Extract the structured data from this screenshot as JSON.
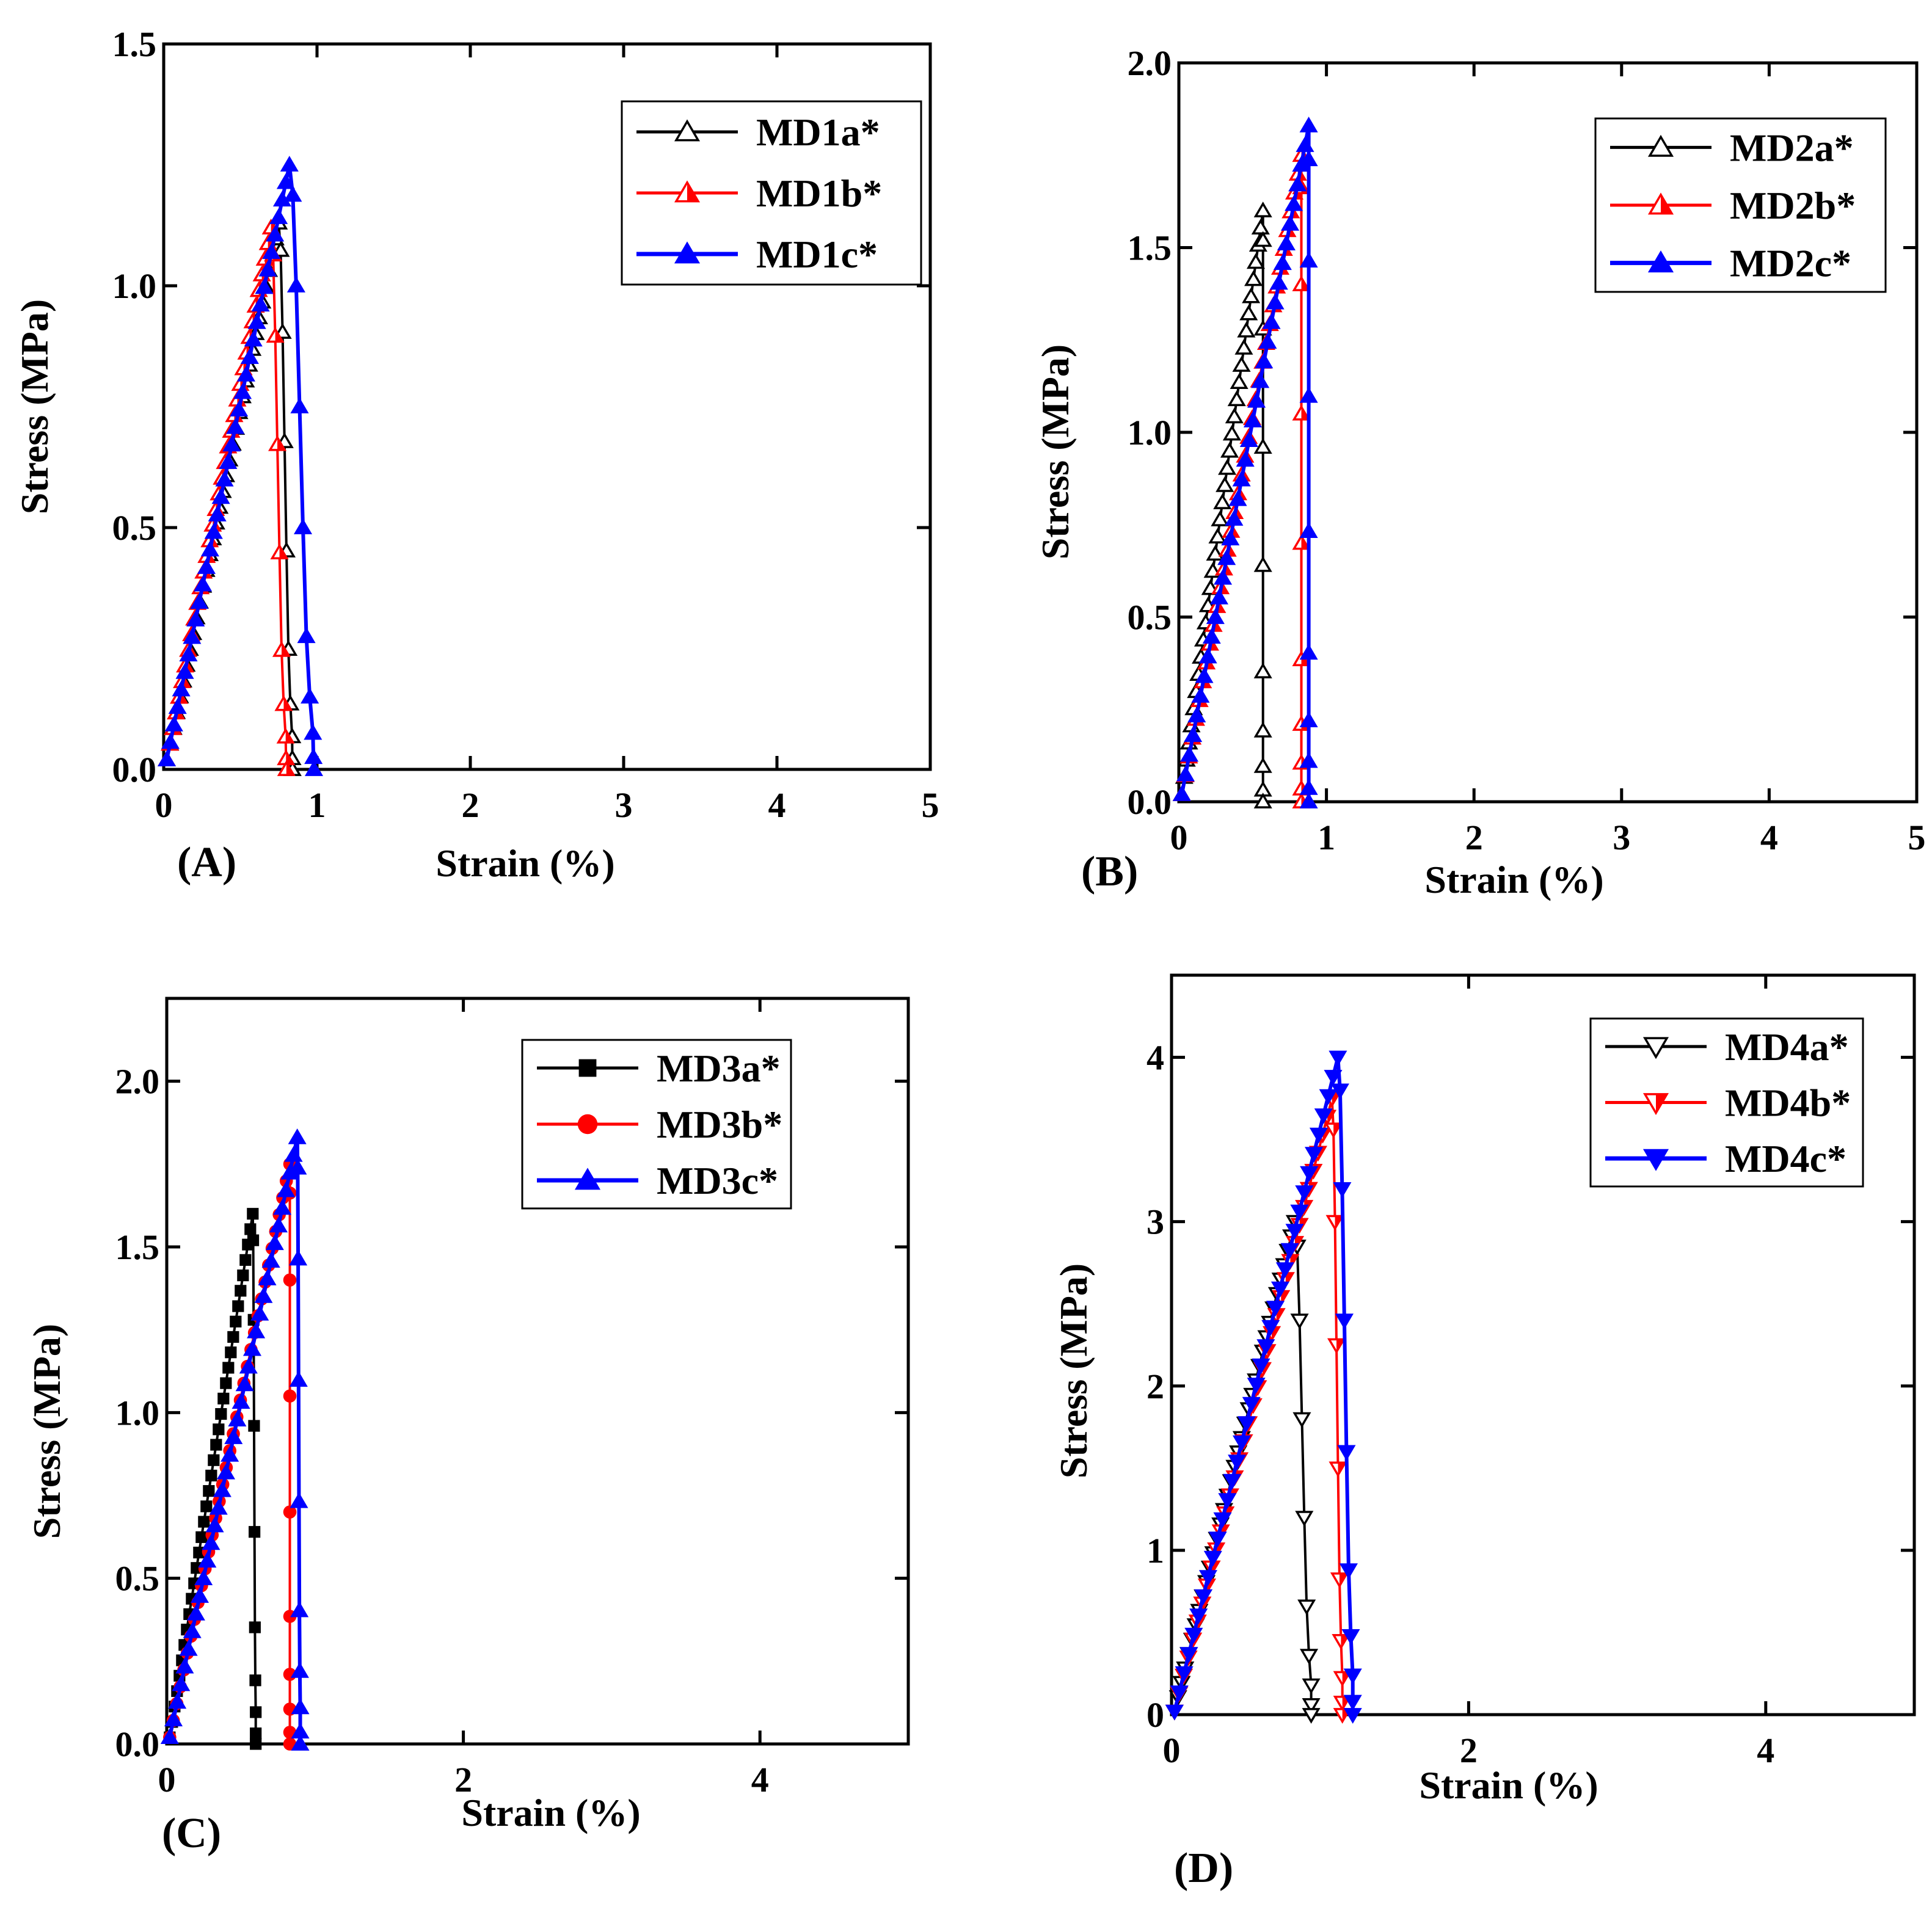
{
  "chart_data": [
    {
      "type": "line",
      "panel_label": "(A)",
      "xlabel": "Strain (%)",
      "ylabel": "Stress (MPa)",
      "xlim": [
        0,
        5
      ],
      "ylim": [
        0,
        1.5
      ],
      "xticks": [
        0,
        1,
        2,
        3,
        4,
        5
      ],
      "yticks": [
        0.0,
        0.5,
        1.0,
        1.5
      ],
      "xtick_labels": [
        "0",
        "1",
        "2",
        "3",
        "4",
        "5"
      ],
      "ytick_labels": [
        "0.0",
        "0.5",
        "1.0",
        "1.5"
      ],
      "legend_position": "top-right",
      "series": [
        {
          "name": "MD1a*",
          "color": "#000000",
          "marker": "triangle-up-open",
          "peak": [
            0.75,
            1.13
          ],
          "fracture_x": 0.83,
          "end_x": 0.84
        },
        {
          "name": "MD1b*",
          "color": "#ff0000",
          "marker": "triangle-up-half",
          "peak": [
            0.7,
            1.12
          ],
          "fracture_x": 0.78,
          "end_x": 0.8
        },
        {
          "name": "MD1c*",
          "color": "#0000ff",
          "marker": "triangle-up-filled",
          "peak": [
            0.82,
            1.25
          ],
          "fracture_x": 0.95,
          "end_x": 0.98
        }
      ]
    },
    {
      "type": "line",
      "panel_label": "(B)",
      "xlabel": "Strain (%)",
      "ylabel": "Stress (MPa)",
      "xlim": [
        0,
        5
      ],
      "ylim": [
        0,
        2.0
      ],
      "xticks": [
        0,
        1,
        2,
        3,
        4,
        5
      ],
      "yticks": [
        0.0,
        0.5,
        1.0,
        1.5,
        2.0
      ],
      "xtick_labels": [
        "0",
        "1",
        "2",
        "3",
        "4",
        "5"
      ],
      "ytick_labels": [
        "0.0",
        "0.5",
        "1.0",
        "1.5",
        "2.0"
      ],
      "legend_position": "top-right",
      "series": [
        {
          "name": "MD2a*",
          "color": "#000000",
          "marker": "triangle-up-open",
          "peak": [
            0.57,
            1.6
          ],
          "fracture_x": 0.57,
          "end_x": 0.57
        },
        {
          "name": "MD2b*",
          "color": "#ff0000",
          "marker": "triangle-up-half",
          "peak": [
            0.83,
            1.75
          ],
          "fracture_x": 0.83,
          "end_x": 0.83
        },
        {
          "name": "MD2c*",
          "color": "#0000ff",
          "marker": "triangle-up-filled",
          "peak": [
            0.88,
            1.83
          ],
          "fracture_x": 0.88,
          "end_x": 0.88
        }
      ]
    },
    {
      "type": "line",
      "panel_label": "(C)",
      "xlabel": "Strain (%)",
      "ylabel": "Stress (MPa)",
      "xlim": [
        0,
        5
      ],
      "ylim": [
        0,
        2.25
      ],
      "xticks": [
        0,
        2,
        4
      ],
      "yticks": [
        0.0,
        0.5,
        1.0,
        1.5,
        2.0
      ],
      "xtick_labels": [
        "0",
        "2",
        "4"
      ],
      "ytick_labels": [
        "0.0",
        "0.5",
        "1.0",
        "1.5",
        "2.0"
      ],
      "legend_position": "top-right",
      "series": [
        {
          "name": "MD3a*",
          "color": "#000000",
          "marker": "square-filled",
          "peak": [
            0.58,
            1.6
          ],
          "fracture_x": 0.6,
          "end_x": 0.6
        },
        {
          "name": "MD3b*",
          "color": "#ff0000",
          "marker": "circle-filled",
          "peak": [
            0.83,
            1.75
          ],
          "fracture_x": 0.83,
          "end_x": 0.83
        },
        {
          "name": "MD3c*",
          "color": "#0000ff",
          "marker": "triangle-up-filled",
          "peak": [
            0.88,
            1.83
          ],
          "fracture_x": 0.9,
          "end_x": 0.9
        }
      ]
    },
    {
      "type": "line",
      "panel_label": "(D)",
      "xlabel": "Strain (%)",
      "ylabel": "Stress (MPa)",
      "xlim": [
        0,
        5
      ],
      "ylim": [
        0,
        4.5
      ],
      "xticks": [
        0,
        2,
        4
      ],
      "yticks": [
        0,
        1,
        2,
        3,
        4
      ],
      "xtick_labels": [
        "0",
        "2",
        "4"
      ],
      "ytick_labels": [
        "0",
        "1",
        "2",
        "3",
        "4"
      ],
      "legend_position": "top-right",
      "series": [
        {
          "name": "MD4a*",
          "color": "#000000",
          "marker": "triangle-down-open",
          "peak": [
            0.83,
            3.0
          ],
          "fracture_x": 0.94,
          "end_x": 0.94
        },
        {
          "name": "MD4b*",
          "color": "#ff0000",
          "marker": "triangle-down-half",
          "peak": [
            1.08,
            3.75
          ],
          "fracture_x": 1.15,
          "end_x": 1.15
        },
        {
          "name": "MD4c*",
          "color": "#0000ff",
          "marker": "triangle-down-filled",
          "peak": [
            1.12,
            4.0
          ],
          "fracture_x": 1.22,
          "end_x": 1.22
        }
      ]
    }
  ]
}
